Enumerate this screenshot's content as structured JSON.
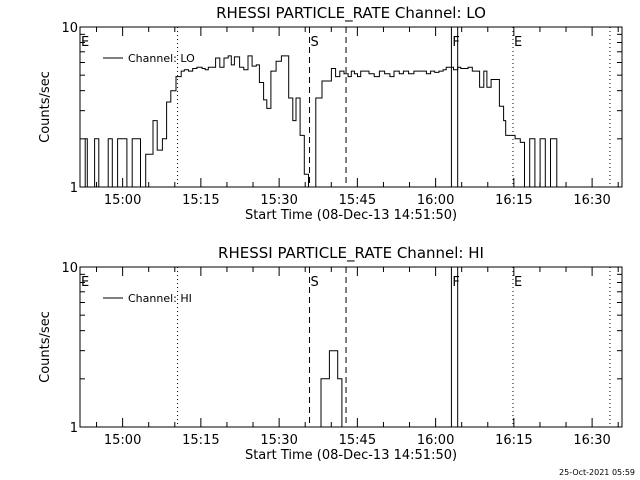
{
  "timestamp": "25-Oct-2021 05:59",
  "chart_data": [
    {
      "type": "line",
      "title": "RHESSI PARTICLE_RATE Channel: LO",
      "xlabel": "Start Time (08-Dec-13 14:51:50)",
      "ylabel": "Counts/sec",
      "yscale": "log",
      "ylim": [
        1,
        10
      ],
      "y_tick_labels": [
        "1",
        "10"
      ],
      "x_tick_labels": [
        "15:00",
        "15:15",
        "15:30",
        "15:45",
        "16:00",
        "16:15",
        "16:30"
      ],
      "x_ticks_min_after_start": [
        8.17,
        23.17,
        38.17,
        53.17,
        68.17,
        83.17,
        98.17
      ],
      "xlim_min": [
        0,
        103.9
      ],
      "legend": "top-left",
      "series": [
        {
          "name": "Channel: LO",
          "x_min": [
            0,
            1,
            1.4,
            2,
            2.8,
            3.6,
            4.4,
            5.4,
            6.2,
            7.2,
            8.2,
            9,
            10,
            10.8,
            11.6,
            12.6,
            13.4,
            14,
            14.8,
            15.8,
            16.6,
            17.4,
            18.4,
            19.4,
            20,
            20.8,
            21.6,
            22.4,
            23.4,
            24,
            24.6,
            25.4,
            26,
            26.8,
            27.6,
            28.4,
            29,
            29.6,
            30.6,
            31.4,
            32.2,
            33,
            33.8,
            34.4,
            35.2,
            35.8,
            36.6,
            37.6,
            38.6,
            39.2,
            40,
            40.8,
            41.4,
            42.2,
            43,
            43.8,
            44.6,
            45.2,
            46.4,
            47.2,
            48.2,
            49,
            49.8,
            50.6,
            51.4,
            52,
            52.6,
            53.2,
            53.8,
            54.6,
            55.4,
            56.4,
            57.4,
            58.4,
            59.4,
            60.2,
            61.2,
            62,
            63,
            64,
            64.8,
            65.6,
            66.4,
            67.2,
            68,
            68.8,
            69.6,
            70.2,
            70.8,
            71.6,
            72.4,
            73,
            73.6,
            74.4,
            75.2,
            76,
            76.6,
            77.4,
            78,
            78.8,
            79.6,
            80.4,
            81.2,
            81.6,
            82.6,
            83.4,
            84.4,
            85.2,
            86.2,
            87.2,
            88.2,
            89.2,
            90.2,
            91.4,
            92.2,
            93.2,
            94,
            95
          ],
          "values": [
            1,
            2,
            1,
            1,
            2,
            1,
            1,
            2,
            1,
            2,
            2,
            1,
            2,
            2,
            1,
            1.6,
            1.6,
            2.6,
            1.7,
            2,
            3.4,
            4,
            4.9,
            5.3,
            5.4,
            5.3,
            5.5,
            5.6,
            5.5,
            5.4,
            5.6,
            5.6,
            6.4,
            5.6,
            6.4,
            6.6,
            5.8,
            6.5,
            5.6,
            5.4,
            6.6,
            5.7,
            5.8,
            4.5,
            3.5,
            3.1,
            5.3,
            6.1,
            6.6,
            6.6,
            3.6,
            2.6,
            3.6,
            2.1,
            1.2,
            1,
            1,
            3.6,
            4.6,
            4.6,
            5.5,
            4.9,
            5.3,
            5.1,
            4.9,
            5.3,
            5.1,
            4.9,
            5.3,
            5.3,
            5.1,
            4.9,
            5.3,
            5.1,
            4.9,
            5.3,
            5.1,
            5.3,
            5.1,
            5.3,
            5.3,
            5.3,
            5.1,
            5.3,
            5.2,
            5.3,
            5.4,
            5.6,
            5.6,
            5.4,
            5.6,
            5.5,
            5.5,
            5.6,
            5.3,
            5.3,
            4.2,
            5.3,
            4.2,
            4.7,
            4.7,
            3.2,
            2.6,
            2.1,
            2.1,
            2,
            1.9,
            1,
            2,
            1,
            2,
            1,
            2,
            1,
            1,
            1,
            1,
            1
          ]
        }
      ],
      "vertical_markers": [
        {
          "label": "E",
          "x_min": 0,
          "style": "dotted"
        },
        {
          "label": "",
          "x_min": 18.7,
          "style": "dotted"
        },
        {
          "label": "S",
          "x_min": 44.0,
          "style": "dashed"
        },
        {
          "label": "",
          "x_min": 51.0,
          "style": "dashed"
        },
        {
          "label": "F",
          "x_min": 71.2,
          "style": "solid"
        },
        {
          "label": "",
          "x_min": 72.4,
          "style": "solid"
        },
        {
          "label": "E",
          "x_min": 83.0,
          "style": "dotted"
        },
        {
          "label": "",
          "x_min": 101.6,
          "style": "dotted"
        }
      ]
    },
    {
      "type": "line",
      "title": "RHESSI PARTICLE_RATE Channel: HI",
      "xlabel": "Start Time (08-Dec-13 14:51:50)",
      "ylabel": "Counts/sec",
      "yscale": "log",
      "ylim": [
        1,
        10
      ],
      "y_tick_labels": [
        "1",
        "10"
      ],
      "x_tick_labels": [
        "15:00",
        "15:15",
        "15:30",
        "15:45",
        "16:00",
        "16:15",
        "16:30"
      ],
      "x_ticks_min_after_start": [
        8.17,
        23.17,
        38.17,
        53.17,
        68.17,
        83.17,
        98.17
      ],
      "xlim_min": [
        0,
        103.9
      ],
      "legend": "top-left",
      "series": [
        {
          "name": "Channel: HI",
          "x_min": [
            0,
            45.5,
            46.2,
            47,
            47.8,
            48.6,
            49.4,
            50.2,
            103.9
          ],
          "values": [
            1,
            1,
            2,
            2,
            3,
            3,
            2,
            1,
            1
          ]
        }
      ],
      "vertical_markers": [
        {
          "label": "E",
          "x_min": 0,
          "style": "dotted"
        },
        {
          "label": "",
          "x_min": 18.7,
          "style": "dotted"
        },
        {
          "label": "S",
          "x_min": 44.0,
          "style": "dashed"
        },
        {
          "label": "",
          "x_min": 51.0,
          "style": "dashed"
        },
        {
          "label": "F",
          "x_min": 71.2,
          "style": "solid"
        },
        {
          "label": "",
          "x_min": 72.4,
          "style": "solid"
        },
        {
          "label": "E",
          "x_min": 83.0,
          "style": "dotted"
        },
        {
          "label": "",
          "x_min": 101.6,
          "style": "dotted"
        }
      ]
    }
  ]
}
